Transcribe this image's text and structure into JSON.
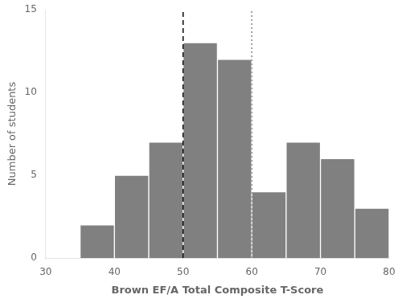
{
  "chart_data": {
    "type": "histogram",
    "bins": [
      30,
      35,
      40,
      45,
      50,
      55,
      60,
      65,
      70,
      75,
      80
    ],
    "values": [
      0,
      2,
      5,
      7,
      13,
      12,
      4,
      7,
      6,
      3
    ],
    "color": "#808080",
    "xlabel": "Brown EF/A Total Composite T-Score",
    "ylabel": "Number of students",
    "xlim": [
      30,
      80
    ],
    "ylim": [
      0,
      15
    ],
    "xticks": [
      30,
      40,
      50,
      60,
      70,
      80
    ],
    "yticks": [
      0,
      5,
      10,
      15
    ],
    "grid": false,
    "vlines": [
      {
        "x": 50,
        "color": "#000000",
        "line_style": "dashed"
      },
      {
        "x": 60,
        "color": "#a0a0a0",
        "line_style": "dotted"
      }
    ]
  }
}
